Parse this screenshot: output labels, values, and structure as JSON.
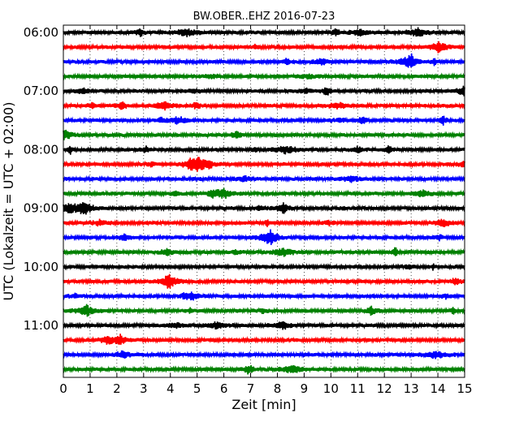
{
  "chart_data": {
    "type": "line",
    "title": "BW.OBER..EHZ 2016-07-23",
    "xlabel": "Zeit  [min]",
    "ylabel": "UTC (Lokalzeit = UTC + 02:00)",
    "xlim": [
      0,
      15
    ],
    "x_ticks": [
      "0",
      "1",
      "2",
      "3",
      "4",
      "5",
      "6",
      "7",
      "8",
      "9",
      "10",
      "11",
      "12",
      "13",
      "14",
      "15"
    ],
    "y_tick_labels": [
      "06:00",
      "07:00",
      "08:00",
      "09:00",
      "10:00",
      "11:00"
    ],
    "grid": true,
    "grid_style": "dotted-vertical",
    "trace_interval_minutes": 15,
    "colors": [
      "#000000",
      "#ff0000",
      "#0000ff",
      "#008000"
    ],
    "traces": [
      {
        "start": "06:00",
        "color": "#000000"
      },
      {
        "start": "06:15",
        "color": "#ff0000"
      },
      {
        "start": "06:30",
        "color": "#0000ff"
      },
      {
        "start": "06:45",
        "color": "#008000"
      },
      {
        "start": "07:00",
        "color": "#000000"
      },
      {
        "start": "07:15",
        "color": "#ff0000"
      },
      {
        "start": "07:30",
        "color": "#0000ff"
      },
      {
        "start": "07:45",
        "color": "#008000"
      },
      {
        "start": "08:00",
        "color": "#000000"
      },
      {
        "start": "08:15",
        "color": "#ff0000"
      },
      {
        "start": "08:30",
        "color": "#0000ff"
      },
      {
        "start": "08:45",
        "color": "#008000"
      },
      {
        "start": "09:00",
        "color": "#000000"
      },
      {
        "start": "09:15",
        "color": "#ff0000"
      },
      {
        "start": "09:30",
        "color": "#0000ff"
      },
      {
        "start": "09:45",
        "color": "#008000"
      },
      {
        "start": "10:00",
        "color": "#000000"
      },
      {
        "start": "10:15",
        "color": "#ff0000"
      },
      {
        "start": "10:30",
        "color": "#0000ff"
      },
      {
        "start": "10:45",
        "color": "#008000"
      },
      {
        "start": "11:00",
        "color": "#000000"
      },
      {
        "start": "11:15",
        "color": "#ff0000"
      },
      {
        "start": "11:30",
        "color": "#0000ff"
      },
      {
        "start": "11:45",
        "color": "#008000"
      }
    ]
  }
}
